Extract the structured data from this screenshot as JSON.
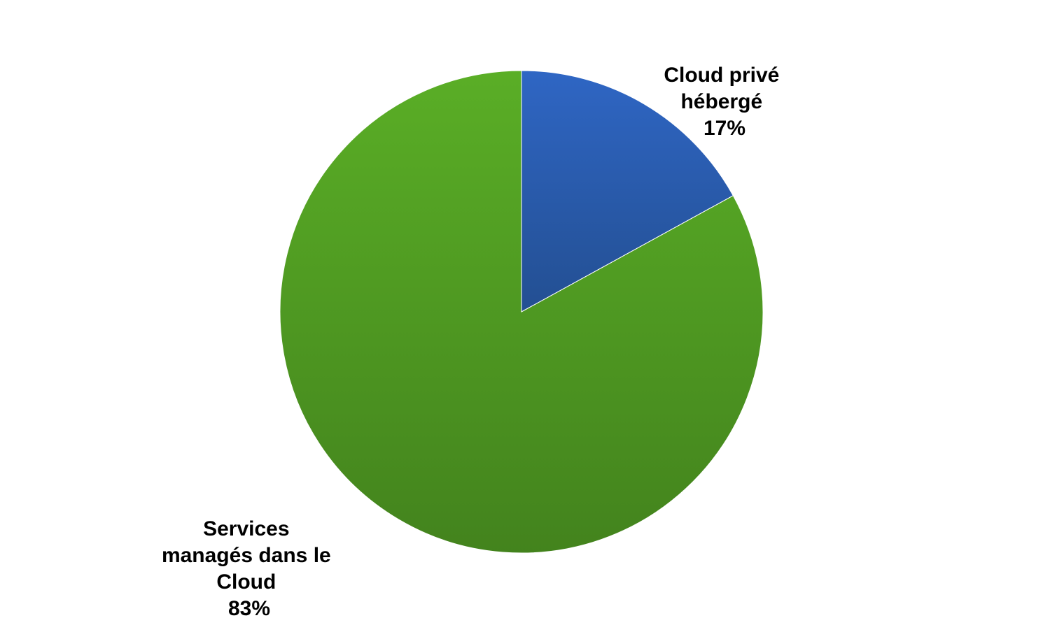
{
  "chart_data": {
    "type": "pie",
    "title": "",
    "slices": [
      {
        "label_lines": [
          "Cloud privé",
          "hébergé"
        ],
        "value": 17,
        "value_label": "17%",
        "color": "#2a5aaa"
      },
      {
        "label_lines": [
          "Services",
          "managés dans le",
          "Cloud"
        ],
        "value": 83,
        "value_label": "83%",
        "color": "#4e9e24"
      }
    ],
    "start_angle": "12 o'clock",
    "direction": "clockwise",
    "legend": "none",
    "data_labels": "outside"
  },
  "colors": {
    "background": "#ffffff",
    "blue_light": "#2f66c4",
    "blue_dark": "#234f92",
    "green_light": "#5aae26",
    "green_dark": "#43831d"
  }
}
